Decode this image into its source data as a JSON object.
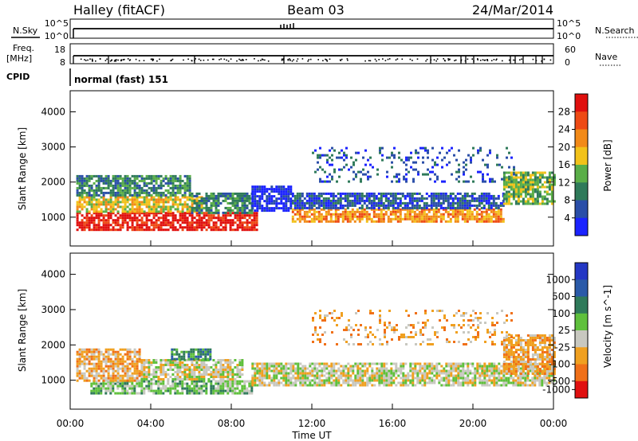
{
  "header": {
    "station": "Halley (fitACF)",
    "beam": "Beam 03",
    "date": "24/Mar/2014"
  },
  "top_panels": {
    "nsky": {
      "label": "N.Sky",
      "tick_top": "10^5",
      "tick_bottom": "10^0"
    },
    "nsearch": {
      "label": "N.Search",
      "tick_top": "10^5",
      "tick_bottom": "10^0"
    },
    "freq": {
      "label_line1": "Freq.",
      "label_line2": "[MHz]",
      "tick_top": "18",
      "tick_bottom": "8"
    },
    "nave": {
      "label": "Nave",
      "tick_top": "60",
      "tick_bottom": "0"
    },
    "cpid": {
      "label": "CPID",
      "value": "normal (fast) 151"
    }
  },
  "chart_data": [
    {
      "type": "heatmap",
      "name": "power-panel",
      "ylabel": "Slant Range [km]",
      "ylim": [
        180,
        4600
      ],
      "yticks": [
        1000,
        2000,
        3000,
        4000
      ],
      "xlim": [
        0,
        24
      ],
      "colorbar": {
        "label": "Power [dB]",
        "ticks": [
          "4",
          "8",
          "12",
          "16",
          "20",
          "24",
          "28"
        ],
        "colors": [
          "#1b23ff",
          "#2a4ea8",
          "#2f7a5a",
          "#5aae48",
          "#f2c21a",
          "#f28a18",
          "#ee4a14",
          "#e0100e"
        ]
      },
      "bands": [
        {
          "t0": 0.3,
          "t1": 9.3,
          "r0": 650,
          "r1": 1150,
          "level": 7
        },
        {
          "t0": 0.3,
          "t1": 6.5,
          "r0": 1150,
          "r1": 1600,
          "level": 4
        },
        {
          "t0": 0.3,
          "t1": 6.0,
          "r0": 1600,
          "r1": 2200,
          "level": 2
        },
        {
          "t0": 6.0,
          "t1": 9.0,
          "r0": 1100,
          "r1": 1700,
          "level": 2
        },
        {
          "t0": 9.0,
          "t1": 11.0,
          "r0": 1200,
          "r1": 1900,
          "level": 0
        },
        {
          "t0": 11.0,
          "t1": 21.5,
          "r0": 850,
          "r1": 1250,
          "level": 5
        },
        {
          "t0": 11.0,
          "t1": 21.5,
          "r0": 1250,
          "r1": 1700,
          "level": 1
        },
        {
          "t0": 21.5,
          "t1": 24.0,
          "r0": 1400,
          "r1": 2300,
          "level": 3
        },
        {
          "t0": 12.0,
          "t1": 22.0,
          "r0": 2000,
          "r1": 3000,
          "level": 1
        }
      ]
    },
    {
      "type": "heatmap",
      "name": "velocity-panel",
      "ylabel": "Slant Range [km]",
      "ylim": [
        180,
        4600
      ],
      "yticks": [
        1000,
        2000,
        3000,
        4000
      ],
      "xlim": [
        0,
        24
      ],
      "xticks": [
        "00:00",
        "04:00",
        "08:00",
        "12:00",
        "16:00",
        "20:00",
        "00:00"
      ],
      "xlabel": "Time UT",
      "colorbar": {
        "label": "Velocity [m s^-1]",
        "ticks": [
          "1000",
          "500",
          "100",
          "25",
          "-25",
          "-100",
          "-500",
          "-1000"
        ],
        "colors": [
          "#2437c4",
          "#2a5aa8",
          "#2f7a5a",
          "#5fc03c",
          "#c8c8c0",
          "#f0a020",
          "#f07018",
          "#e01010"
        ]
      },
      "bands": [
        {
          "t0": 1.0,
          "t1": 9.0,
          "r0": 650,
          "r1": 1000,
          "level": 3
        },
        {
          "t0": 0.3,
          "t1": 3.5,
          "r0": 1000,
          "r1": 1900,
          "level": 5
        },
        {
          "t0": 3.5,
          "t1": 8.5,
          "r0": 1000,
          "r1": 1600,
          "level": 4
        },
        {
          "t0": 5.0,
          "t1": 7.0,
          "r0": 1600,
          "r1": 1900,
          "level": 2
        },
        {
          "t0": 9.0,
          "t1": 24.0,
          "r0": 850,
          "r1": 1500,
          "level": 4
        },
        {
          "t0": 21.5,
          "t1": 24.0,
          "r0": 1200,
          "r1": 2300,
          "level": 5
        },
        {
          "t0": 12.0,
          "t1": 22.0,
          "r0": 2000,
          "r1": 3000,
          "level": 5
        }
      ]
    }
  ]
}
